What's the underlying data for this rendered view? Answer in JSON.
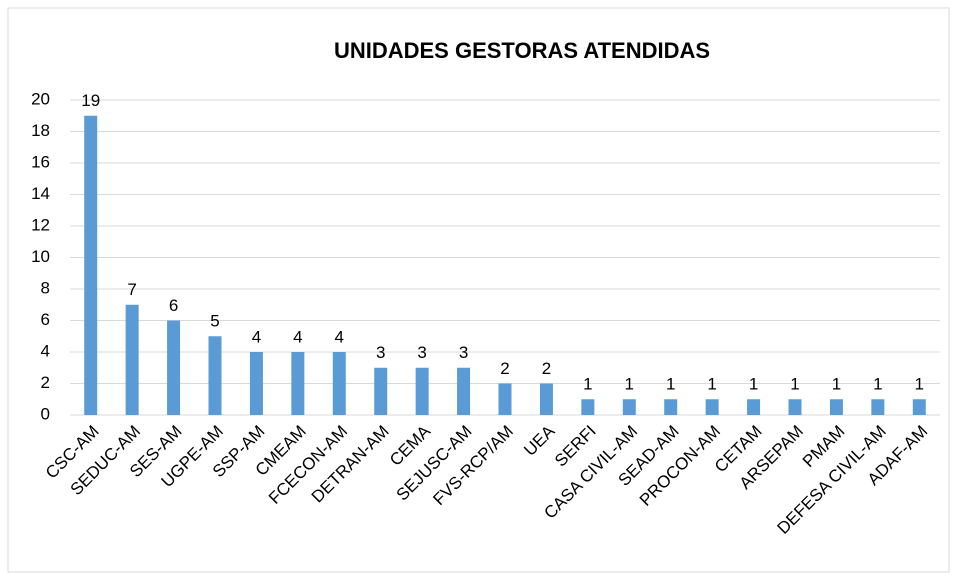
{
  "chart_data": {
    "type": "bar",
    "title": "UNIDADES GESTORAS ATENDIDAS",
    "categories": [
      "CSC-AM",
      "SEDUC-AM",
      "SES-AM",
      "UGPE-AM",
      "SSP-AM",
      "CMEAM",
      "FCECON-AM",
      "DETRAN-AM",
      "CEMA",
      "SEJUSC-AM",
      "FVS-RCP/AM",
      "UEA",
      "SERFI",
      "CASA CIVIL-AM",
      "SEAD-AM",
      "PROCON-AM",
      "CETAM",
      "ARSEPAM",
      "PMAM",
      "DEFESA CIVIL-AM",
      "ADAF-AM"
    ],
    "values": [
      19,
      7,
      6,
      5,
      4,
      4,
      4,
      3,
      3,
      3,
      2,
      2,
      1,
      1,
      1,
      1,
      1,
      1,
      1,
      1,
      1
    ],
    "color": "#5b9bd5",
    "ylim": [
      0,
      20
    ],
    "yticks": [
      0,
      2,
      4,
      6,
      8,
      10,
      12,
      14,
      16,
      18,
      20
    ],
    "grid": true
  }
}
